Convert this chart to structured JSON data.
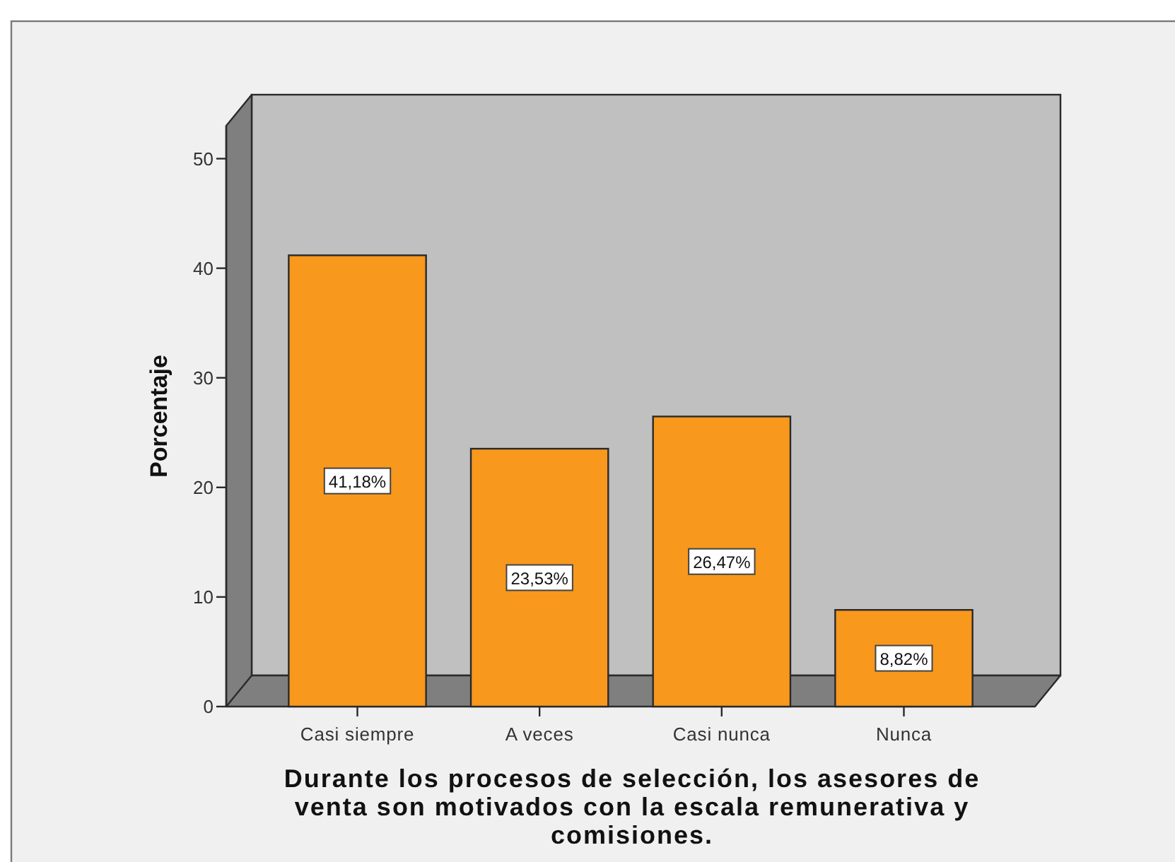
{
  "chart_data": {
    "type": "bar",
    "xlabel": "Durante los procesos de selección, los asesores de venta son motivados con la escala remunerativa y comisiones.",
    "ylabel": "Porcentaje",
    "categories": [
      "Casi siempre",
      "A veces",
      "Casi nunca",
      "Nunca"
    ],
    "values": [
      41.18,
      23.53,
      26.47,
      8.82
    ],
    "value_labels": [
      "41,18%",
      "23,53%",
      "26,47%",
      "8,82%"
    ],
    "color": "#f8981d",
    "ylim": [
      0,
      53
    ],
    "yticks": [
      0,
      10,
      20,
      30,
      40,
      50
    ]
  }
}
